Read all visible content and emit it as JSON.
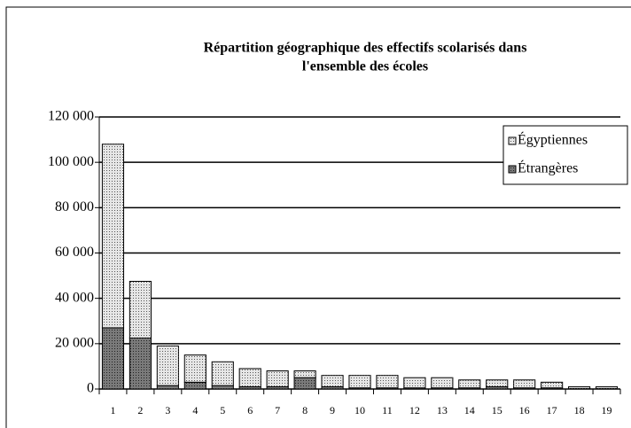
{
  "chart_data": {
    "type": "bar",
    "stacked": true,
    "title": "Répartition géographique des effectifs scolarisés dans",
    "title_line2": "l'ensemble des écoles",
    "categories": [
      "1",
      "2",
      "3",
      "4",
      "5",
      "6",
      "7",
      "8",
      "9",
      "10",
      "11",
      "12",
      "13",
      "14",
      "15",
      "16",
      "17",
      "18",
      "19"
    ],
    "series": [
      {
        "name": "Étrangères",
        "color": "#7a7a7a",
        "values": [
          27000,
          22500,
          1500,
          3000,
          1500,
          1000,
          1000,
          5000,
          1000,
          500,
          500,
          500,
          500,
          500,
          1000,
          500,
          500,
          200,
          200
        ]
      },
      {
        "name": "Égyptiennes",
        "color": "#e6e6e6",
        "values": [
          81000,
          25000,
          17500,
          12000,
          10500,
          8000,
          7000,
          3000,
          5000,
          5500,
          5500,
          4500,
          4500,
          3500,
          3000,
          3500,
          2500,
          800,
          800
        ]
      }
    ],
    "ylim": [
      0,
      120000
    ],
    "yticks": [
      0,
      {
        "value": 20000,
        "label": "20 000"
      },
      {
        "value": 40000,
        "label": "40 000"
      },
      {
        "value": 60000,
        "label": "60 000"
      },
      {
        "value": 80000,
        "label": "80 000"
      },
      {
        "value": 100000,
        "label": "100 000"
      },
      {
        "value": 120000,
        "label": "120 000"
      }
    ],
    "grid": true,
    "legend": "upper right"
  }
}
